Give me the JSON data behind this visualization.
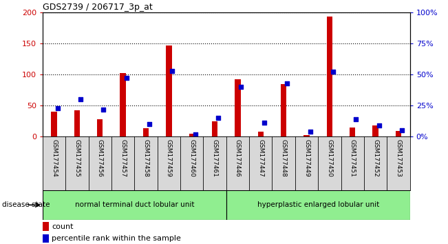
{
  "title": "GDS2739 / 206717_3p_at",
  "samples": [
    "GSM177454",
    "GSM177455",
    "GSM177456",
    "GSM177457",
    "GSM177458",
    "GSM177459",
    "GSM177460",
    "GSM177461",
    "GSM177446",
    "GSM177447",
    "GSM177448",
    "GSM177449",
    "GSM177450",
    "GSM177451",
    "GSM177452",
    "GSM177453"
  ],
  "counts": [
    40,
    42,
    28,
    102,
    14,
    147,
    5,
    25,
    92,
    8,
    84,
    3,
    193,
    15,
    18,
    9
  ],
  "percentiles": [
    23,
    30,
    22,
    47,
    10,
    53,
    2,
    15,
    40,
    11,
    43,
    4,
    52,
    14,
    9,
    5
  ],
  "group1_label": "normal terminal duct lobular unit",
  "group2_label": "hyperplastic enlarged lobular unit",
  "group1_count": 8,
  "group2_count": 8,
  "ylim_left": [
    0,
    200
  ],
  "ylim_right": [
    0,
    100
  ],
  "yticks_left": [
    0,
    50,
    100,
    150,
    200
  ],
  "yticks_right": [
    0,
    25,
    50,
    75,
    100
  ],
  "ytick_labels_left": [
    "0",
    "50",
    "100",
    "150",
    "200"
  ],
  "ytick_labels_right": [
    "0%",
    "25%",
    "50%",
    "75%",
    "100%"
  ],
  "bar_color_count": "#cc0000",
  "bar_color_pct": "#0000cc",
  "group1_color": "#90ee90",
  "group2_color": "#90ee90",
  "grid_color": "black",
  "bg_color": "#d8d8d8",
  "disease_state_label": "disease state",
  "legend_count": "count",
  "legend_pct": "percentile rank within the sample"
}
